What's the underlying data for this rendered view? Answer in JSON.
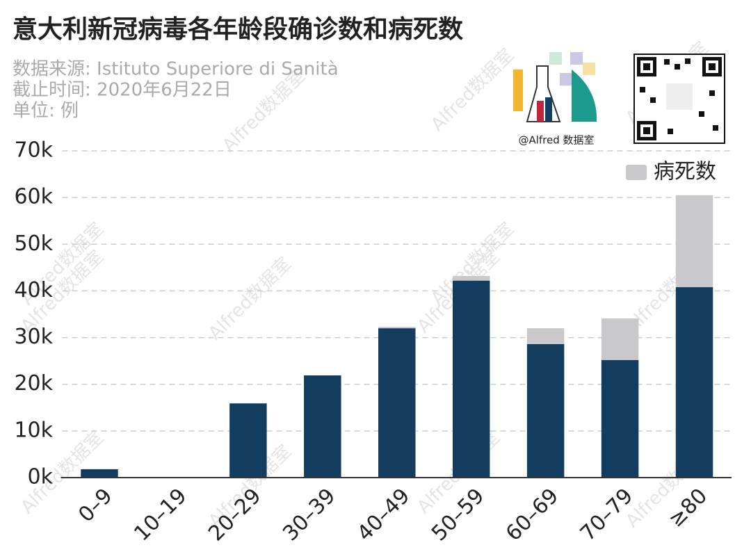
{
  "chart_data": {
    "type": "bar",
    "stacked": true,
    "title": "意大利新冠病毒各年龄段确诊数和病死数",
    "subtitle": [
      "数据来源: Istituto Superiore di Sanità",
      "截止时间: 2020年6月22日",
      "单位: 例"
    ],
    "categories": [
      "0–9",
      "10–19",
      "20–29",
      "30–39",
      "40–49",
      "50–59",
      "60–69",
      "70–79",
      "≥80"
    ],
    "series": [
      {
        "color": "#123d5e",
        "values": [
          1800,
          0,
          15900,
          21900,
          32000,
          42200,
          28600,
          25200,
          40800
        ]
      },
      {
        "name": "病死数",
        "color": "#c9c9cb",
        "values": [
          0,
          0,
          0,
          0,
          300,
          1000,
          3400,
          8900,
          19700
        ]
      }
    ],
    "ylim": [
      0,
      70000
    ],
    "yticks": [
      {
        "value": 0,
        "label": "0k"
      },
      {
        "value": 10000,
        "label": "10k"
      },
      {
        "value": 20000,
        "label": "20k"
      },
      {
        "value": 30000,
        "label": "30k"
      },
      {
        "value": 40000,
        "label": "40k"
      },
      {
        "value": 50000,
        "label": "50k"
      },
      {
        "value": 60000,
        "label": "60k"
      },
      {
        "value": 70000,
        "label": "70k"
      }
    ],
    "grid": true,
    "legend": "upper right",
    "logo_text": "@Alfred 数据室",
    "watermark": "Alfred数据室"
  }
}
